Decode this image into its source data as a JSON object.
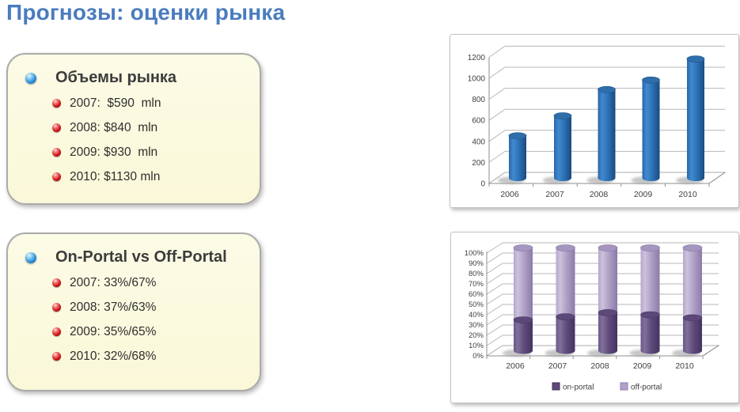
{
  "page": {
    "title": "Прогнозы: оценки рынка"
  },
  "colors": {
    "title_blue": "#4A7CBE",
    "panel_background": "#FAF9DC",
    "panel_border": "#ABABAB",
    "bar_blue": "#2E74B8",
    "on_portal_purple": "#5F497A",
    "off_portal_purple": "#B2A2C7"
  },
  "panels": [
    {
      "heading": "Объемы рынка",
      "items": [
        {
          "label": "2007:  $590  mln"
        },
        {
          "label": "2008: $840  mln"
        },
        {
          "label": "2009: $930  mln"
        },
        {
          "label": "2010: $1130 mln"
        }
      ]
    },
    {
      "heading": "On-Portal vs Off-Portal",
      "items": [
        {
          "label": "2007: 33%/67%"
        },
        {
          "label": "2008: 37%/63%"
        },
        {
          "label": "2009: 35%/65%"
        },
        {
          "label": "2010: 32%/68%"
        }
      ]
    }
  ],
  "chart_data": [
    {
      "type": "bar",
      "style": "3d-cylinder",
      "title": "",
      "xlabel": "",
      "ylabel": "",
      "categories": [
        "2006",
        "2007",
        "2008",
        "2009",
        "2010"
      ],
      "values": [
        400,
        590,
        840,
        930,
        1130
      ],
      "ylim": [
        0,
        1200
      ],
      "ytick_step": 200,
      "yticks": [
        "0",
        "200",
        "400",
        "600",
        "800",
        "1000",
        "1200"
      ],
      "grid": true,
      "legend": false,
      "bar_color": "#2E74B8"
    },
    {
      "type": "bar",
      "style": "3d-cylinder-stacked-100pct",
      "title": "",
      "xlabel": "",
      "ylabel": "",
      "categories": [
        "2006",
        "2007",
        "2008",
        "2009",
        "2010"
      ],
      "series": [
        {
          "name": "on-portal",
          "color": "#5F497A",
          "values": [
            30,
            33,
            37,
            35,
            32
          ]
        },
        {
          "name": "off-portal",
          "color": "#B2A2C7",
          "values": [
            70,
            67,
            63,
            65,
            68
          ]
        }
      ],
      "ylim": [
        0,
        100
      ],
      "ytick_step": 10,
      "yticks": [
        "0%",
        "10%",
        "20%",
        "30%",
        "40%",
        "50%",
        "60%",
        "70%",
        "80%",
        "90%",
        "100%"
      ],
      "grid": true,
      "legend_position": "bottom"
    }
  ]
}
